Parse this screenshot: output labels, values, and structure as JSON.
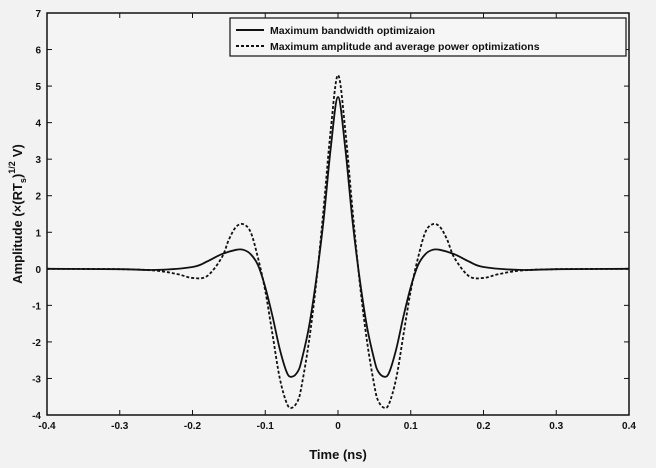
{
  "chart_data": {
    "type": "line",
    "xlabel": "Time (ns)",
    "ylabel": "Amplitude (×(RT",
    "ylabel_sub": "s",
    "ylabel_close": ")",
    "ylabel_sup": "1/2",
    "ylabel_unit": "V)",
    "xlim": [
      -0.4,
      0.4
    ],
    "ylim": [
      -4,
      7
    ],
    "xticks": [
      -0.4,
      -0.3,
      -0.2,
      -0.1,
      0,
      0.1,
      0.2,
      0.3,
      0.4
    ],
    "yticks": [
      -4,
      -3,
      -2,
      -1,
      0,
      1,
      2,
      3,
      4,
      5,
      6,
      7
    ],
    "xtick_labels": [
      "-0.4",
      "-0.3",
      "-0.2",
      "-0.1",
      "0",
      "0.1",
      "0.2",
      "0.3",
      "0.4"
    ],
    "ytick_labels": [
      "-4",
      "-3",
      "-2",
      "-1",
      "0",
      "1",
      "2",
      "3",
      "4",
      "5",
      "6",
      "7"
    ],
    "legend_position": "top-right",
    "series": [
      {
        "name": "Maximum bandwidth optimizaion",
        "style": "solid",
        "color": "#111111",
        "x": [
          -0.4,
          -0.3,
          -0.25,
          -0.2,
          -0.18,
          -0.16,
          -0.14,
          -0.13,
          -0.12,
          -0.11,
          -0.1,
          -0.09,
          -0.08,
          -0.07,
          -0.063,
          -0.055,
          -0.05,
          -0.04,
          -0.03,
          -0.02,
          -0.01,
          0,
          0.01,
          0.02,
          0.03,
          0.04,
          0.05,
          0.055,
          0.063,
          0.07,
          0.08,
          0.09,
          0.1,
          0.11,
          0.12,
          0.13,
          0.14,
          0.16,
          0.18,
          0.2,
          0.25,
          0.3,
          0.4
        ],
        "y": [
          0,
          -0.01,
          -0.03,
          0.05,
          0.2,
          0.4,
          0.52,
          0.52,
          0.4,
          0.1,
          -0.5,
          -1.3,
          -2.2,
          -2.85,
          -2.95,
          -2.8,
          -2.5,
          -1.6,
          -0.3,
          1.3,
          3.3,
          4.7,
          3.3,
          1.3,
          -0.3,
          -1.6,
          -2.5,
          -2.8,
          -2.95,
          -2.85,
          -2.2,
          -1.3,
          -0.5,
          0.1,
          0.4,
          0.52,
          0.52,
          0.4,
          0.2,
          0.05,
          -0.03,
          -0.01,
          0
        ]
      },
      {
        "name": "Maximum amplitude and average power optimizations",
        "style": "dashed",
        "color": "#111111",
        "x": [
          -0.4,
          -0.3,
          -0.25,
          -0.22,
          -0.2,
          -0.18,
          -0.16,
          -0.15,
          -0.14,
          -0.13,
          -0.12,
          -0.11,
          -0.1,
          -0.09,
          -0.08,
          -0.07,
          -0.063,
          -0.055,
          -0.05,
          -0.04,
          -0.03,
          -0.02,
          -0.01,
          0,
          0.01,
          0.02,
          0.03,
          0.04,
          0.05,
          0.055,
          0.063,
          0.07,
          0.08,
          0.09,
          0.1,
          0.11,
          0.12,
          0.13,
          0.14,
          0.15,
          0.16,
          0.18,
          0.2,
          0.22,
          0.25,
          0.3,
          0.4
        ],
        "y": [
          0,
          -0.01,
          -0.05,
          -0.15,
          -0.25,
          -0.2,
          0.3,
          0.8,
          1.15,
          1.22,
          1.0,
          0.3,
          -0.6,
          -1.8,
          -3.0,
          -3.7,
          -3.8,
          -3.6,
          -3.2,
          -2.0,
          -0.4,
          1.6,
          3.8,
          5.3,
          3.8,
          1.6,
          -0.4,
          -2.0,
          -3.2,
          -3.6,
          -3.8,
          -3.7,
          -3.0,
          -1.8,
          -0.6,
          0.3,
          1.0,
          1.22,
          1.15,
          0.8,
          0.3,
          -0.2,
          -0.25,
          -0.15,
          -0.05,
          -0.01,
          0
        ]
      }
    ]
  }
}
